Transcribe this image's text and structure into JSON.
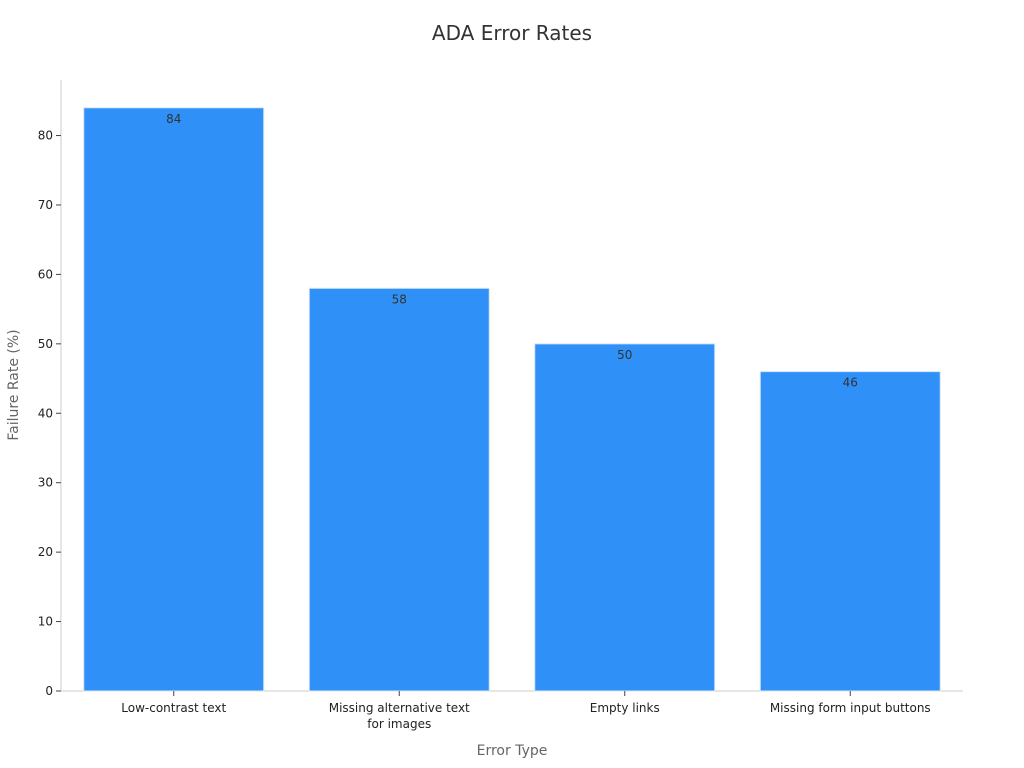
{
  "chart_data": {
    "type": "bar",
    "title": "ADA Error Rates",
    "xlabel": "Error Type",
    "ylabel": "Failure Rate (%)",
    "categories": [
      [
        "Low-contrast text"
      ],
      [
        "Missing alternative text",
        "for images"
      ],
      [
        "Empty links"
      ],
      [
        "Missing form input buttons"
      ]
    ],
    "values": [
      84,
      58,
      50,
      46
    ],
    "ylim": [
      0,
      88
    ],
    "yticks": [
      0,
      10,
      20,
      30,
      40,
      50,
      60,
      70,
      80
    ],
    "bar_color": "#2f91f7",
    "grid": false,
    "legend": false
  }
}
